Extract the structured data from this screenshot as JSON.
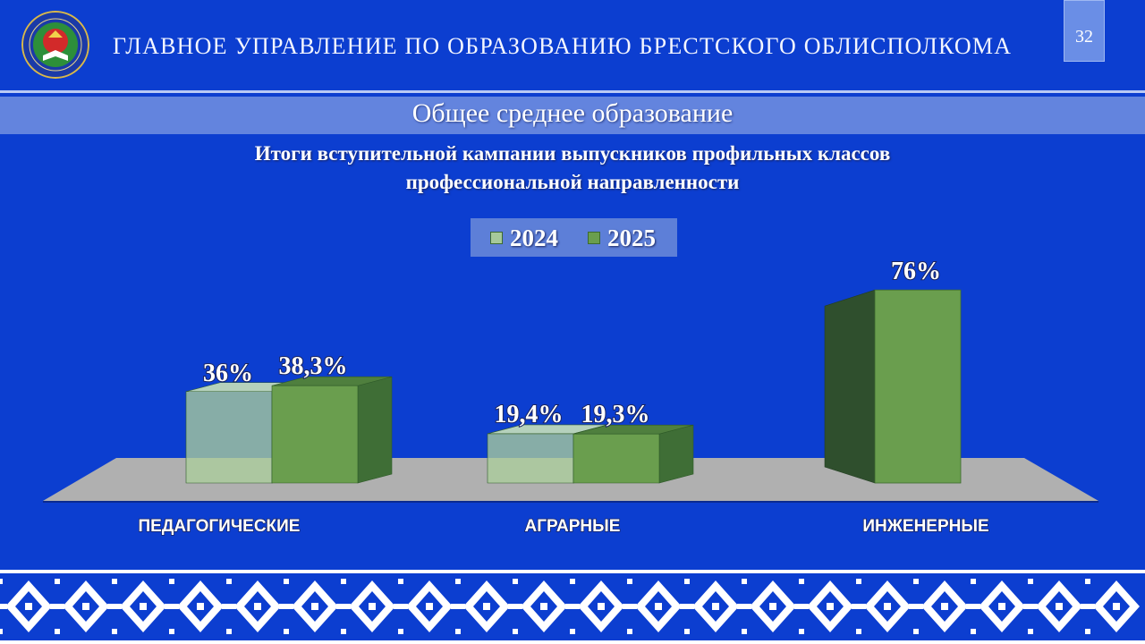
{
  "header": {
    "title": "ГЛАВНОЕ УПРАВЛЕНИЕ ПО ОБРАЗОВАНИЮ БРЕСТСКОГО ОБЛИСПОЛКОМА",
    "page_number": "32",
    "logo_icon": "emblem-icon"
  },
  "section": {
    "title": "Общее среднее образование"
  },
  "colors": {
    "background": "#0c3ed0",
    "series_2024": "#a6c99a",
    "series_2025": "#6a9e4e",
    "floor": "#b0b0b0"
  },
  "chart_data": {
    "type": "bar",
    "title": "Итоги вступительной кампании выпускников профильных классов профессиональной направленности",
    "title_lines": [
      "Итоги вступительной кампании выпускников профильных классов",
      "профессиональной направленности"
    ],
    "categories": [
      "ПЕДАГОГИЧЕСКИЕ",
      "АГРАРНЫЕ",
      "ИНЖЕНЕРНЫЕ"
    ],
    "series": [
      {
        "name": "2024",
        "values": [
          36,
          19.4,
          null
        ],
        "labels": [
          "36%",
          "19,4%",
          ""
        ]
      },
      {
        "name": "2025",
        "values": [
          38.3,
          19.3,
          76
        ],
        "labels": [
          "38,3%",
          "19,3%",
          "76%"
        ]
      }
    ],
    "unit": "%",
    "legend_position": "top-center",
    "grid": false,
    "style": "3d"
  },
  "ornament": {
    "icon": "belarusian-ornament-icon"
  }
}
